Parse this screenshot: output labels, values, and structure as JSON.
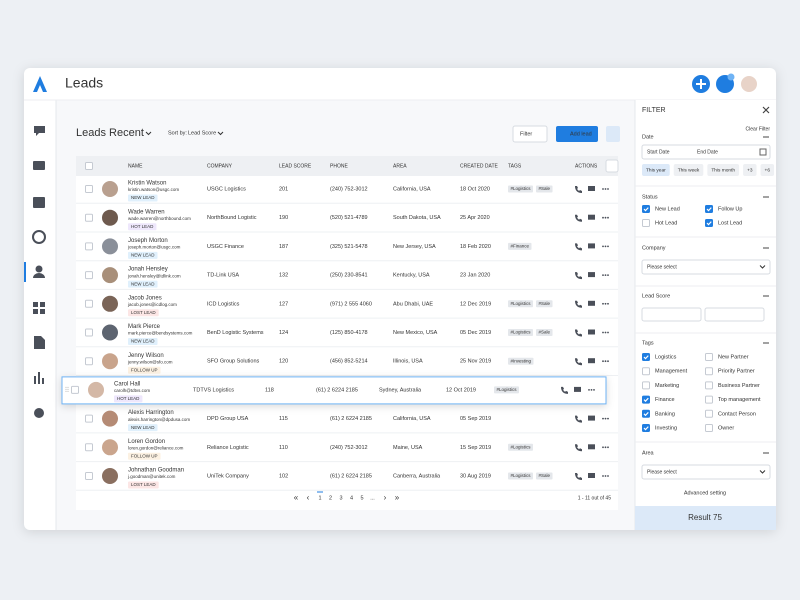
{
  "header": {
    "title": "Leads"
  },
  "toolbar": {
    "view_title": "Leads Recent",
    "sort_label": "Sort by:",
    "sort_value": "Lead Score",
    "filter_button": "Filter",
    "add_button": "Add lead"
  },
  "table": {
    "columns": [
      "NAME",
      "COMPANY",
      "LEAD SCORE",
      "PHONE",
      "AREA",
      "CREATED DATE",
      "TAGS",
      "ACTIONS"
    ],
    "rows": [
      {
        "name": "Kristin Watson",
        "email": "kristin.watson@usgc.com",
        "status": "NEW LEAD",
        "status_color": "#2f9be8",
        "company": "USGC Logistics",
        "score": 201,
        "phone": "(240) 752-3012",
        "area": "California, USA",
        "created": "18 Oct 2020",
        "tags": [
          "#Logistics",
          "#Sale"
        ]
      },
      {
        "name": "Wade Warren",
        "email": "wade.warren@northbound.com",
        "status": "HOT LEAD",
        "status_color": "#8e5be8",
        "company": "NorthBound Logistic",
        "score": 190,
        "phone": "(520) 521-4789",
        "area": "South Dakota, USA",
        "created": "25 Apr 2020",
        "tags": []
      },
      {
        "name": "Joseph Morton",
        "email": "joseph.morton@usgc.com",
        "status": "NEW LEAD",
        "status_color": "#2f9be8",
        "company": "USGC Finance",
        "score": 187,
        "phone": "(325) 521-5478",
        "area": "New Jersey, USA",
        "created": "18 Feb 2020",
        "tags": [
          "#Finance"
        ]
      },
      {
        "name": "Jonah Hensley",
        "email": "jonah.hensley@tdlink.com",
        "status": "NEW LEAD",
        "status_color": "#2f9be8",
        "company": "TD-Link USA",
        "score": 132,
        "phone": "(250) 230-8541",
        "area": "Kentucky, USA",
        "created": "23 Jan 2020",
        "tags": []
      },
      {
        "name": "Jacob Jones",
        "email": "jacob.jones@icdlog.com",
        "status": "LOST LEAD",
        "status_color": "#e8544f",
        "company": "ICD Logistics",
        "score": 127,
        "phone": "(971) 2 555 4060",
        "area": "Abu Dhabi, UAE",
        "created": "12 Dec 2019",
        "tags": [
          "#Logistics",
          "#Sale"
        ]
      },
      {
        "name": "Mark Pierce",
        "email": "mark.pierce@bendsystems.com",
        "status": "NEW LEAD",
        "status_color": "#2f9be8",
        "company": "BenD Logistic Systems",
        "score": 124,
        "phone": "(125) 850-4178",
        "area": "New Mexico, USA",
        "created": "05 Dec 2019",
        "tags": [
          "#Logistics",
          "#Sale"
        ]
      },
      {
        "name": "Jenny Wilson",
        "email": "jenny.wilson@sfo.com",
        "status": "FOLLOW UP",
        "status_color": "#e8a23a",
        "company": "SFO Group Solutions",
        "score": 120,
        "phone": "(456) 852-5214",
        "area": "Illinois, USA",
        "created": "25 Nov 2019",
        "tags": [
          "#Investing"
        ]
      },
      {
        "name": "Carol Hall",
        "email": "carolh@tdtvs.com",
        "status": "HOT LEAD",
        "status_color": "#8e5be8",
        "company": "TDTVS Logistics",
        "score": 118,
        "phone": "(61) 2 6224 2185",
        "area": "Sydney, Australia",
        "created": "12 Oct 2019",
        "tags": [
          "#Logistics"
        ],
        "dragging": true
      },
      {
        "name": "Alexis Harrington",
        "email": "alexis.harrington@dpdusa.com",
        "status": "NEW LEAD",
        "status_color": "#2f9be8",
        "company": "DPD Group USA",
        "score": 115,
        "phone": "(61) 2 6224 2185",
        "area": "California, USA",
        "created": "05 Sep 2019",
        "tags": []
      },
      {
        "name": "Loren Gordon",
        "email": "loren.gordon@reliance.com",
        "status": "FOLLOW UP",
        "status_color": "#e8a23a",
        "company": "Reliance Logistic",
        "score": 110,
        "phone": "(240) 752-3012",
        "area": "Maine, USA",
        "created": "15 Sep 2019",
        "tags": [
          "#Logistics"
        ]
      },
      {
        "name": "Johnathan Goodman",
        "email": "j.goodman@unitek.com",
        "status": "LOST LEAD",
        "status_color": "#e8544f",
        "company": "UniTek Company",
        "score": 102,
        "phone": "(61) 2 6224 2185",
        "area": "Canberra, Australia",
        "created": "30 Aug 2019",
        "tags": [
          "#Logistics",
          "#Sale"
        ]
      }
    ]
  },
  "pagination": {
    "pages": [
      "1",
      "2",
      "3",
      "4",
      "5",
      "..."
    ],
    "summary": "1 - 11 out of 45"
  },
  "filter": {
    "title": "FILTER",
    "clear": "Clear Filter",
    "date": {
      "label": "Date",
      "start": "Start Date",
      "end": "End Date",
      "chips": [
        "This year",
        "This week",
        "This month",
        "+3",
        "+6"
      ]
    },
    "status": {
      "label": "Status",
      "options": [
        {
          "text": "New Lead",
          "checked": true
        },
        {
          "text": "Follow Up",
          "checked": true
        },
        {
          "text": "Hot Lead",
          "checked": false
        },
        {
          "text": "Lost Lead",
          "checked": true
        }
      ]
    },
    "company": {
      "label": "Company",
      "placeholder": "Please select"
    },
    "lead_score": {
      "label": "Lead Score"
    },
    "tags": {
      "label": "Tags",
      "options": [
        {
          "text": "Logistics",
          "checked": true
        },
        {
          "text": "New Partner",
          "checked": false
        },
        {
          "text": "Management",
          "checked": false
        },
        {
          "text": "Priority Partner",
          "checked": false
        },
        {
          "text": "Marketing",
          "checked": false
        },
        {
          "text": "Business Partner",
          "checked": false
        },
        {
          "text": "Finance",
          "checked": true
        },
        {
          "text": "Top management",
          "checked": false
        },
        {
          "text": "Banking",
          "checked": true
        },
        {
          "text": "Contact Person",
          "checked": false
        },
        {
          "text": "Investing",
          "checked": true
        },
        {
          "text": "Owner",
          "checked": false
        }
      ]
    },
    "area": {
      "label": "Area",
      "placeholder": "Please select"
    },
    "advanced": "Advanced setting",
    "result": "Result 75"
  }
}
